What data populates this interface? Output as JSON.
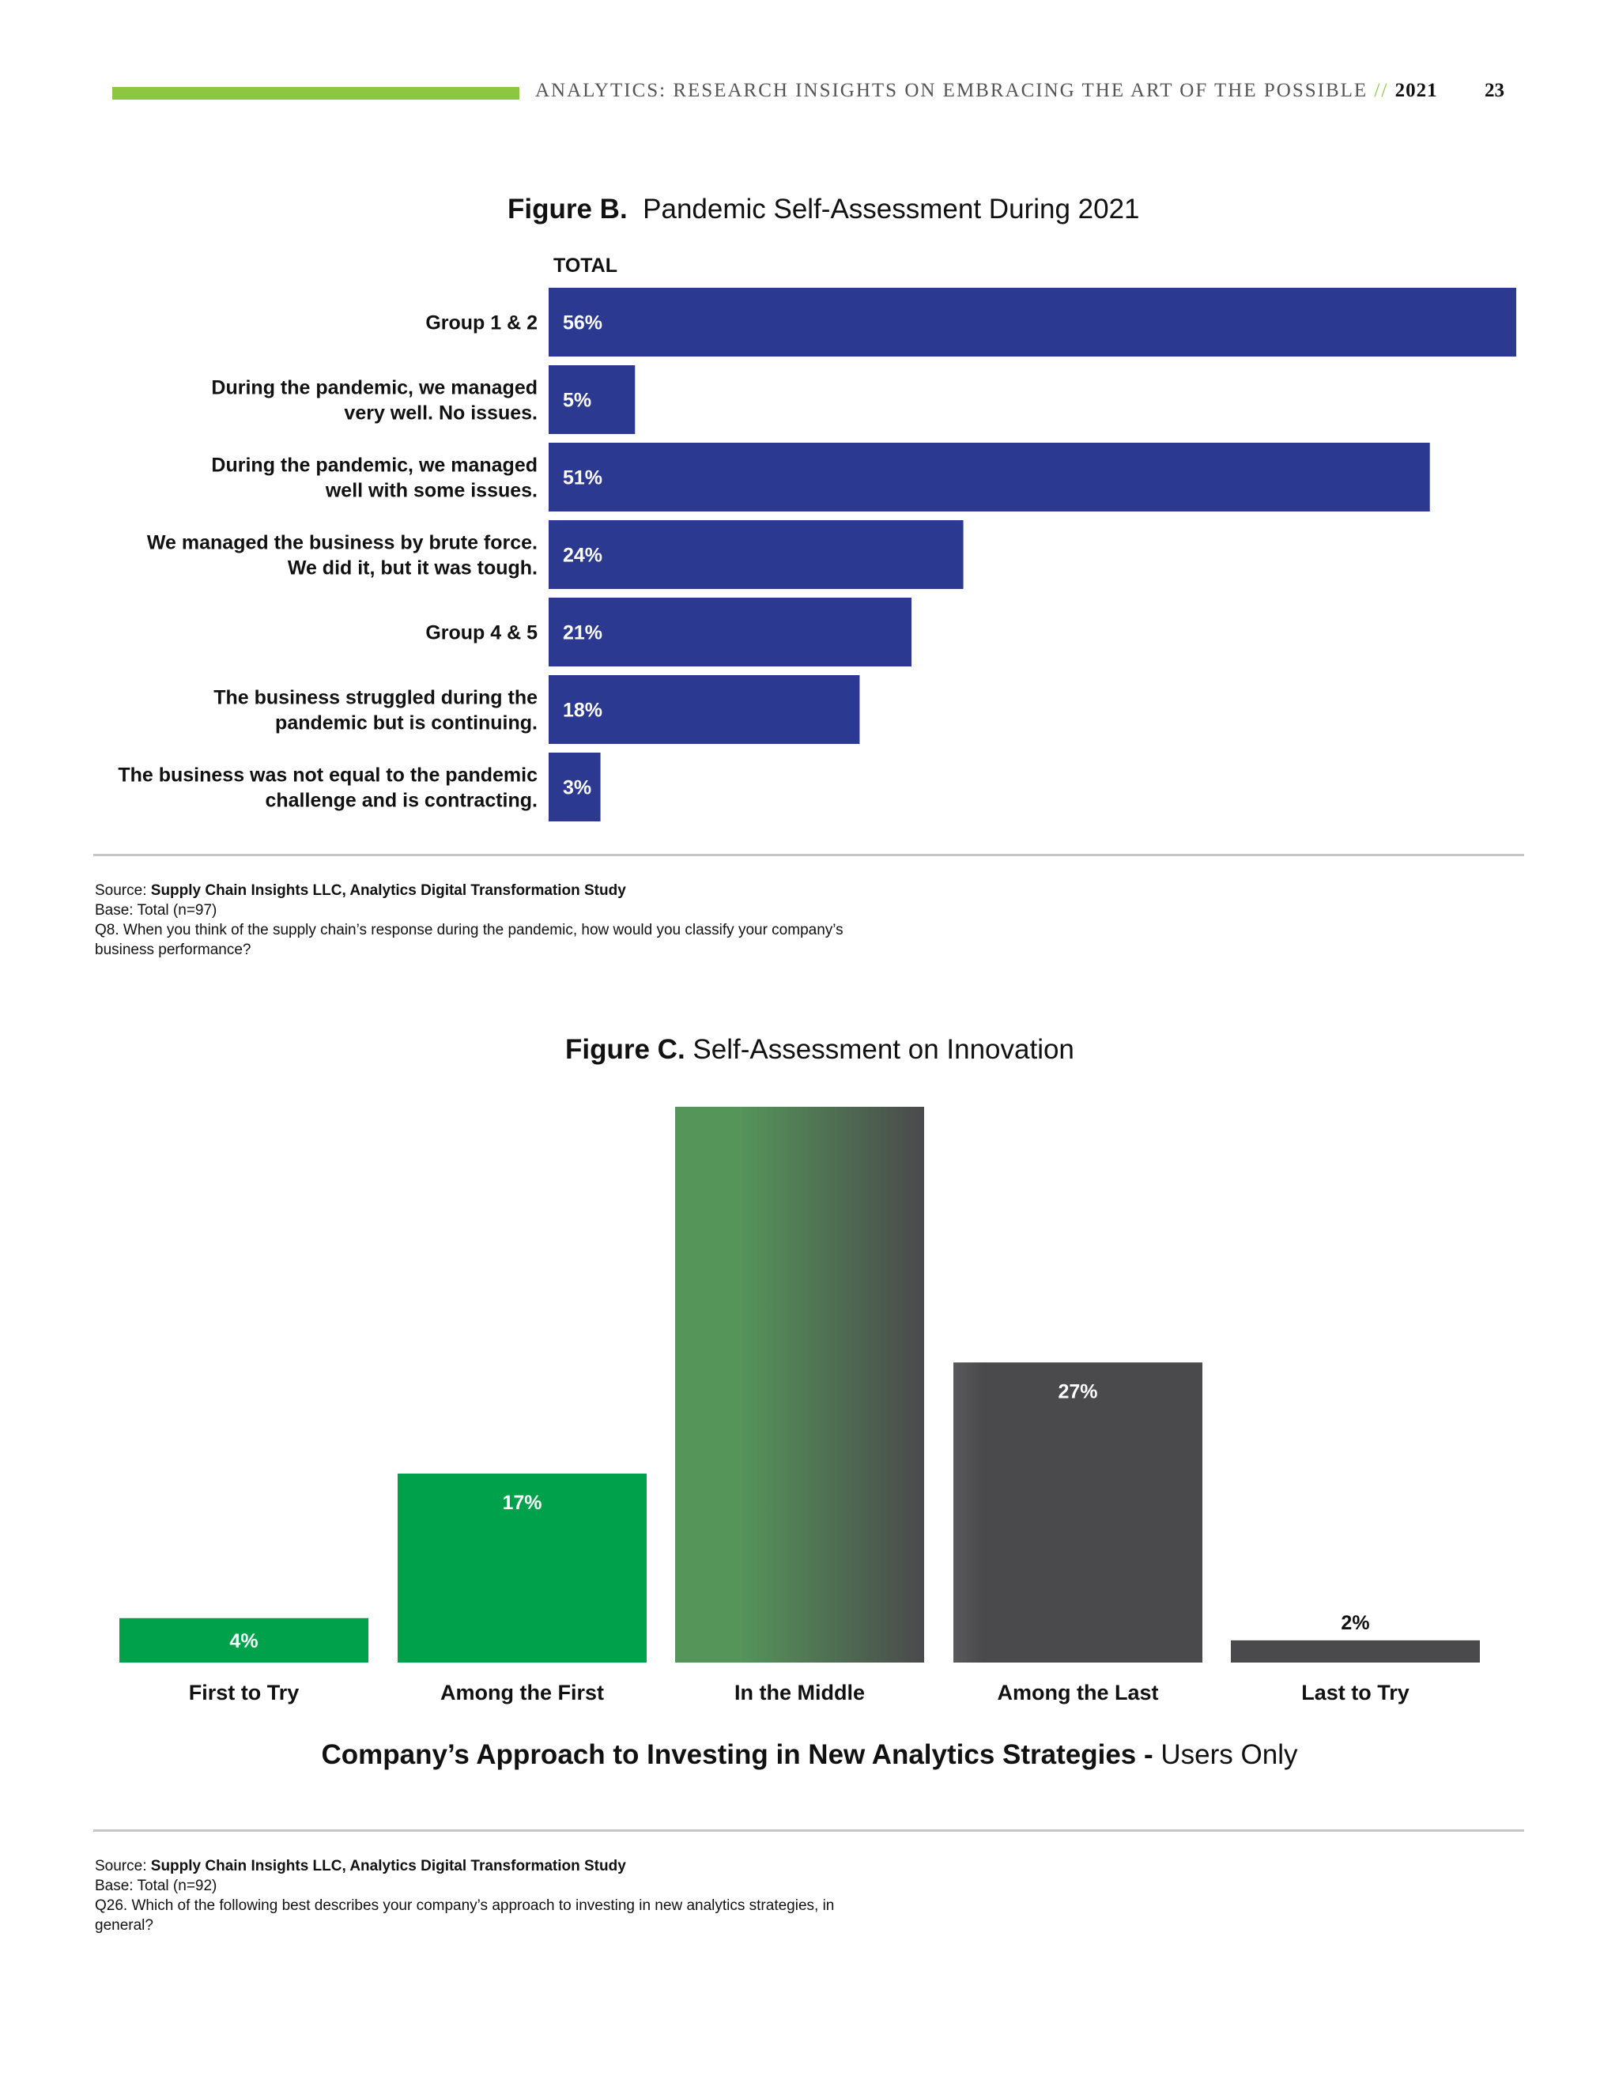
{
  "header": {
    "title": "ANALYTICS: RESEARCH INSIGHTS ON EMBRACING THE ART OF THE POSSIBLE",
    "separator": "//",
    "year": "2021",
    "page_number": "23",
    "accent_color": "#8dc63f"
  },
  "figure_b": {
    "label": "Figure B.",
    "title": "Pandemic Self-Assessment During 2021",
    "column_label": "TOTAL",
    "source_prefix": "Source:",
    "source_name": "Supply Chain Insights LLC, Analytics Digital Transformation Study",
    "base": "Base: Total (n=97)",
    "question": "Q8. When you think of the supply chain’s response during the pandemic, how would you classify your company’s business performance?"
  },
  "figure_c": {
    "label": "Figure C.",
    "title": "Self-Assessment on Innovation",
    "x_title_bold": "Company’s Approach to Investing in New Analytics Strategies -",
    "x_title_rest": "Users Only",
    "source_prefix": "Source:",
    "source_name": "Supply Chain Insights LLC, Analytics Digital Transformation Study",
    "base": "Base: Total (n=92)",
    "question": "Q26. Which of the following best describes your company’s approach to investing in new analytics strategies, in general?"
  },
  "chart_data": [
    {
      "type": "bar",
      "orientation": "horizontal",
      "title": "Pandemic Self-Assessment During 2021",
      "categories": [
        [
          "Group 1 & 2"
        ],
        [
          "During the pandemic, we managed",
          "very well.  No issues."
        ],
        [
          "During the pandemic, we managed",
          "well with some issues."
        ],
        [
          "We managed the business by brute force.",
          "We did it, but it was tough."
        ],
        [
          "Group 4 & 5"
        ],
        [
          "The business struggled during the",
          "pandemic but is continuing."
        ],
        [
          "The business was not equal to the pandemic",
          "challenge and is contracting."
        ]
      ],
      "series": [
        {
          "name": "TOTAL",
          "values": [
            56,
            5,
            51,
            24,
            21,
            18,
            3
          ]
        }
      ],
      "data_labels": [
        "56%",
        "5%",
        "51%",
        "24%",
        "21%",
        "18%",
        "3%"
      ],
      "unit": "%",
      "xlim": [
        0,
        56
      ],
      "bar_color": "#2b3990",
      "grid": false
    },
    {
      "type": "bar",
      "orientation": "vertical",
      "title": "Self-Assessment on Innovation",
      "categories": [
        "First to Try",
        "Among the First",
        "In the Middle",
        "Among the Last",
        "Last to Try"
      ],
      "values": [
        4,
        17,
        50,
        27,
        2
      ],
      "data_labels": [
        "4%",
        "17%",
        "",
        "27%",
        "2%"
      ],
      "unit": "%",
      "ylim": [
        0,
        50
      ],
      "colors": [
        "#00a14b",
        "#00a14b",
        "gradient-green-to-gray",
        "#4a4a4c",
        "#4a4a4c"
      ],
      "gradient_colors": [
        "#55955a",
        "#4a4a4c"
      ],
      "grid": false
    }
  ]
}
